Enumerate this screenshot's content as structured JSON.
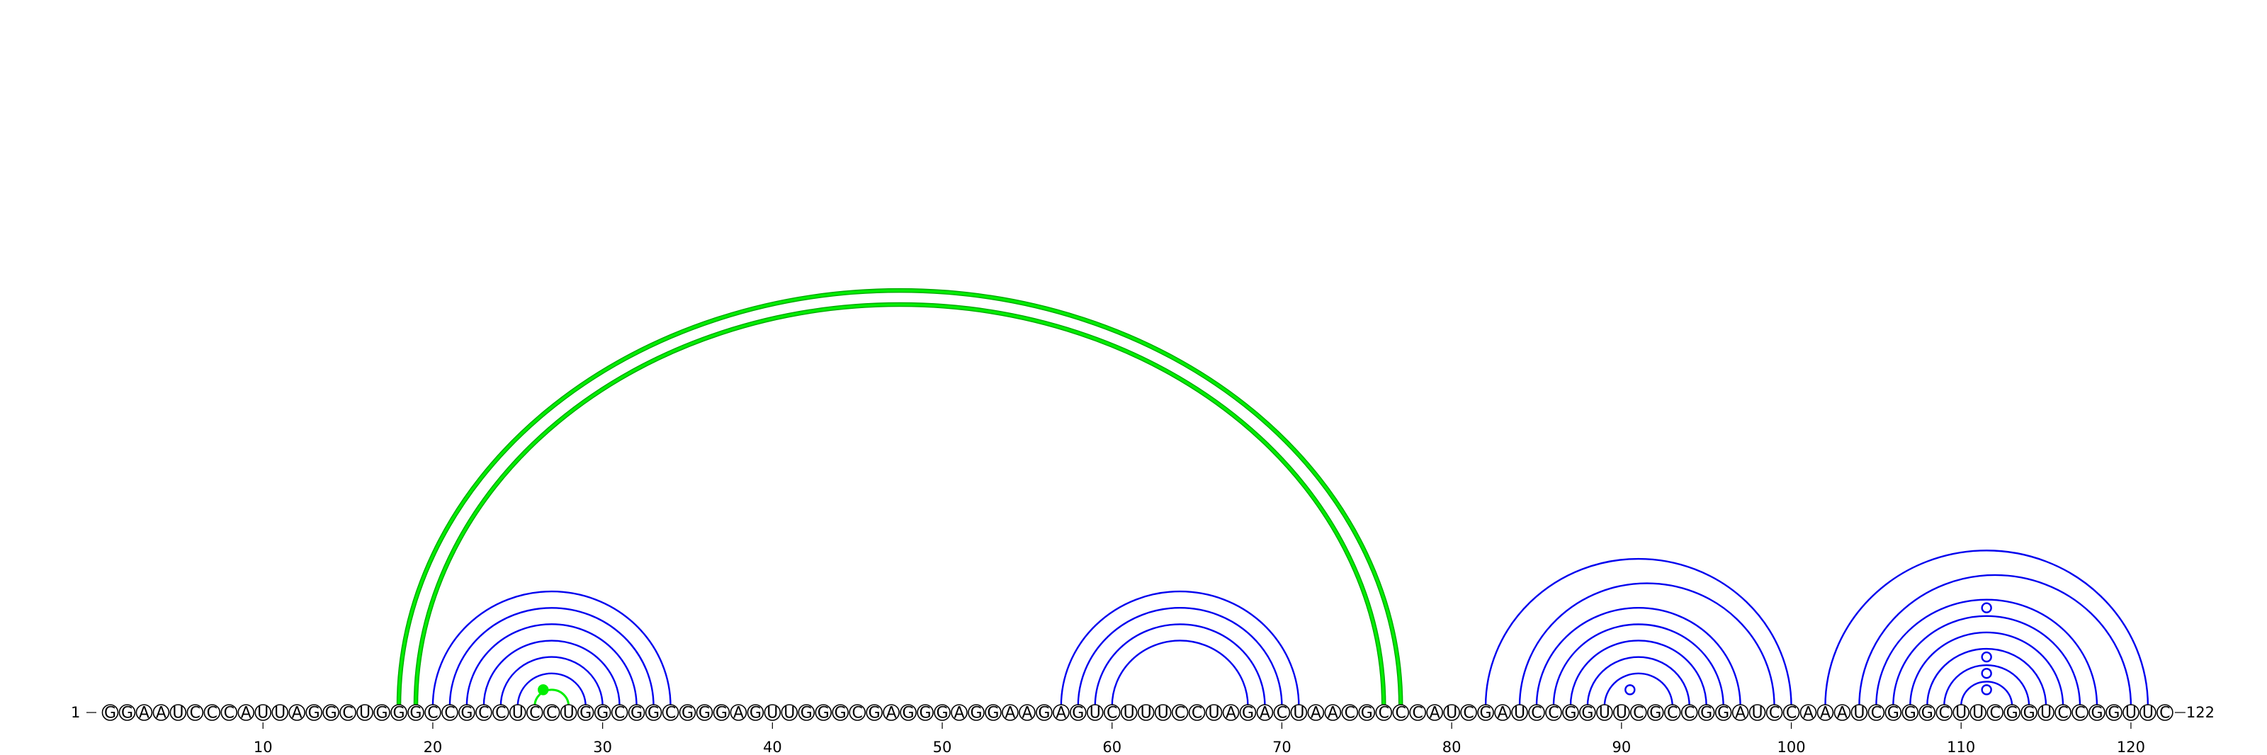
{
  "diagram": {
    "type": "rna-arc-diagram",
    "sequence": "GGAAUCCCAUUAGGCUGGGCCGCCUCCUGGCGGCGGGAGUUGGGCGAGGGAGGAAGAGUCUUUCCUAGACUAACGCCCAUCGAUCCGGUUCGCCGGAUCCAAAUCGGGCUUCGGUCCGGUUC",
    "start_label": "1",
    "end_label": "122",
    "tick_positions": [
      10,
      20,
      30,
      40,
      50,
      60,
      70,
      80,
      90,
      100,
      110,
      120
    ],
    "tick_labels": [
      "10",
      "20",
      "30",
      "40",
      "50",
      "60",
      "70",
      "80",
      "90",
      "100",
      "110",
      "120"
    ],
    "colors": {
      "blue_arcs": "#0000ee",
      "green_arcs": "#00ee00",
      "pseudoknot_outline": "#00aa00"
    },
    "stems_blue": [
      {
        "name": "stem-1",
        "pairs": [
          [
            20,
            34
          ],
          [
            21,
            33
          ],
          [
            22,
            32
          ],
          [
            23,
            31
          ],
          [
            24,
            30
          ],
          [
            25,
            29
          ]
        ]
      },
      {
        "name": "stem-2",
        "pairs": [
          [
            57,
            71
          ],
          [
            58,
            70
          ],
          [
            59,
            69
          ],
          [
            60,
            68
          ]
        ]
      },
      {
        "name": "stem-3",
        "pairs": [
          [
            82,
            100
          ],
          [
            84,
            99
          ],
          [
            85,
            97
          ],
          [
            86,
            96
          ],
          [
            87,
            95
          ],
          [
            88,
            94
          ],
          [
            89,
            93
          ]
        ]
      },
      {
        "name": "stem-4",
        "pairs": [
          [
            102,
            121
          ],
          [
            104,
            120
          ],
          [
            105,
            118
          ],
          [
            106,
            117
          ],
          [
            107,
            116
          ],
          [
            108,
            115
          ],
          [
            109,
            114
          ],
          [
            110,
            113
          ]
        ]
      }
    ],
    "green_pairs": [
      [
        18,
        77
      ],
      [
        19,
        76
      ],
      [
        26,
        28
      ]
    ],
    "pseudoknot_pairs": [
      [
        18,
        77
      ],
      [
        19,
        76
      ]
    ],
    "markers": [
      {
        "pos": 26.5,
        "height": 1.0,
        "style": "filled",
        "color": "#00ee00"
      },
      {
        "pos": 90.5,
        "height": 1.0,
        "style": "open",
        "color": "#0000ee"
      },
      {
        "pos": 111.5,
        "height": 1.0,
        "style": "open",
        "color": "#0000ee"
      },
      {
        "pos": 111.5,
        "height": 2.0,
        "style": "open",
        "color": "#0000ee"
      },
      {
        "pos": 111.5,
        "height": 3.0,
        "style": "open",
        "color": "#0000ee"
      },
      {
        "pos": 111.5,
        "height": 6.0,
        "style": "open",
        "color": "#0000ee"
      }
    ]
  }
}
